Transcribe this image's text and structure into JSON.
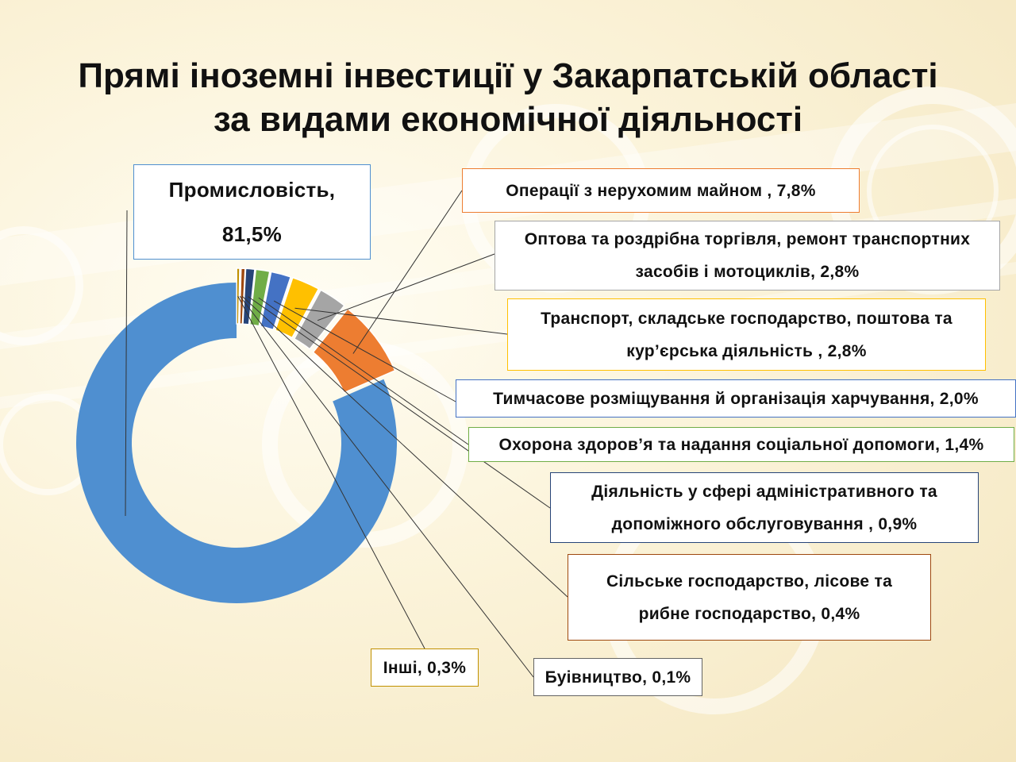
{
  "title": {
    "line1": "Прямі іноземні інвестиції у Закарпатській області",
    "line2": "за видами економічної діяльності"
  },
  "chart_data": {
    "type": "pie",
    "variant": "doughnut",
    "title": "Прямі іноземні інвестиції у Закарпатській області за видами економічної діяльності",
    "slices": [
      {
        "label_lines": [
          "Промисловість,",
          "81,5%"
        ],
        "value": 81.5,
        "color": "#4f8fd0",
        "border": "#4f8fd0"
      },
      {
        "label_lines": [
          "Операції з нерухомим майном , 7,8%"
        ],
        "value": 7.8,
        "color": "#ed7d31",
        "border": "#ed7d31"
      },
      {
        "label_lines": [
          "Оптова та роздрібна торгівля, ремонт транспортних",
          "засобів і мотоциклів, 2,8%"
        ],
        "value": 2.8,
        "color": "#a5a5a5",
        "border": "#a5a5a5"
      },
      {
        "label_lines": [
          "Транспорт, складське господарство, поштова та",
          "кур’єрська діяльність , 2,8%"
        ],
        "value": 2.8,
        "color": "#ffc000",
        "border": "#ffc000"
      },
      {
        "label_lines": [
          "Тимчасове розміщування й організація харчування, 2,0%"
        ],
        "value": 2.0,
        "color": "#4472c4",
        "border": "#4472c4"
      },
      {
        "label_lines": [
          "Охорона здоров’я та надання соціальної допомоги, 1,4%"
        ],
        "value": 1.4,
        "color": "#70ad47",
        "border": "#70ad47"
      },
      {
        "label_lines": [
          "Діяльність у сфері адміністративного та",
          "допоміжного обслуговування , 0,9%"
        ],
        "value": 0.9,
        "color": "#264478",
        "border": "#264478"
      },
      {
        "label_lines": [
          "Сільське господарство, лісове та",
          "рибне  господарство, 0,4%"
        ],
        "value": 0.4,
        "color": "#9e480e",
        "border": "#9e480e"
      },
      {
        "label_lines": [
          "Буівництво, 0,1%"
        ],
        "value": 0.1,
        "color": "#636363",
        "border": "#636363"
      },
      {
        "label_lines": [
          "Інші, 0,3%"
        ],
        "value": 0.3,
        "color": "#c09000",
        "border": "#c09000"
      }
    ],
    "legend": "none"
  }
}
